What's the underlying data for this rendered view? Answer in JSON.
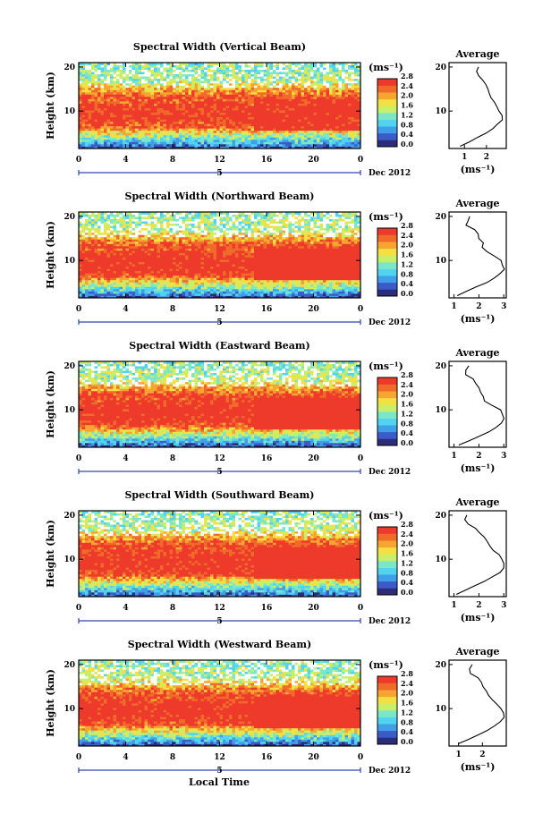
{
  "chart_data": {
    "type": "heatmap",
    "month_label": "Dec 2012",
    "xlabel": "Local Time",
    "day_label": "5",
    "ylabel": "Height (km)",
    "x_ticks": [
      "0",
      "4",
      "8",
      "12",
      "16",
      "20",
      "0"
    ],
    "y_ticks": [
      "20",
      "10"
    ],
    "xlim": [
      0,
      24
    ],
    "ylim": [
      1.5,
      21
    ],
    "colorbar": {
      "unit": "(ms⁻¹)",
      "ticks": [
        {
          "value": 0.0,
          "label": "0.0"
        },
        {
          "value": 0.4,
          "label": "0.4"
        },
        {
          "value": 0.8,
          "label": "0.8"
        },
        {
          "value": 1.2,
          "label": "1.2"
        },
        {
          "value": 1.6,
          "label": "1.6"
        },
        {
          "value": 2.0,
          "label": "2.0"
        },
        {
          "value": 2.4,
          "label": "2.4"
        },
        {
          "value": 2.8,
          "label": "2.8"
        }
      ],
      "range": [
        0,
        2.8
      ],
      "colors": [
        "#2b2d7a",
        "#3b5cc8",
        "#3fa0e8",
        "#52d3f0",
        "#7ae8c8",
        "#c8ee6a",
        "#f4e042",
        "#f7a531",
        "#f06a2a",
        "#ee3a2a"
      ]
    },
    "profile_title": "Average",
    "profile_xlabel": "(ms⁻¹)",
    "panels": [
      {
        "title": "Spectral Width (Vertical Beam)",
        "intensity": 0.85,
        "profile": {
          "x_ticks": [
            {
              "value": 1,
              "label": "1"
            },
            {
              "value": 2,
              "label": "2"
            }
          ],
          "xlim": [
            0.3,
            2.9
          ],
          "height": [
            2,
            3,
            4,
            5,
            6,
            7,
            8,
            9,
            10,
            11,
            12,
            13,
            14,
            15,
            16,
            17,
            18,
            19,
            20
          ],
          "width": [
            0.8,
            1.2,
            1.6,
            2.0,
            2.3,
            2.5,
            2.7,
            2.7,
            2.6,
            2.45,
            2.35,
            2.2,
            2.15,
            2.05,
            2.0,
            1.85,
            1.65,
            1.55,
            1.65
          ]
        }
      },
      {
        "title": "Spectral Width (Northward Beam)",
        "intensity": 1.0,
        "profile": {
          "x_ticks": [
            {
              "value": 1,
              "label": "1"
            },
            {
              "value": 2,
              "label": "2"
            },
            {
              "value": 3,
              "label": "3"
            }
          ],
          "xlim": [
            0.8,
            3.1
          ],
          "height": [
            2,
            3,
            4,
            5,
            6,
            7,
            8,
            9,
            10,
            11,
            12,
            13,
            14,
            15,
            16,
            17,
            18,
            19,
            20
          ],
          "width": [
            1.15,
            1.5,
            1.9,
            2.3,
            2.6,
            2.85,
            3.0,
            2.95,
            2.9,
            2.6,
            2.3,
            2.1,
            2.2,
            2.0,
            1.95,
            1.85,
            1.5,
            1.55,
            1.65
          ]
        }
      },
      {
        "title": "Spectral Width (Eastward Beam)",
        "intensity": 1.0,
        "profile": {
          "x_ticks": [
            {
              "value": 1,
              "label": "1"
            },
            {
              "value": 2,
              "label": "2"
            },
            {
              "value": 3,
              "label": "3"
            }
          ],
          "xlim": [
            0.8,
            3.1
          ],
          "height": [
            2,
            3,
            4,
            5,
            6,
            7,
            8,
            9,
            10,
            11,
            12,
            13,
            14,
            15,
            16,
            17,
            18,
            19,
            20
          ],
          "width": [
            1.2,
            1.6,
            2.0,
            2.4,
            2.7,
            2.9,
            3.0,
            2.95,
            2.85,
            2.5,
            2.25,
            2.15,
            2.05,
            2.0,
            1.9,
            1.75,
            1.45,
            1.5,
            1.6
          ]
        }
      },
      {
        "title": "Spectral Width (Southward Beam)",
        "intensity": 1.0,
        "profile": {
          "x_ticks": [
            {
              "value": 1,
              "label": "1"
            },
            {
              "value": 2,
              "label": "2"
            },
            {
              "value": 3,
              "label": "3"
            }
          ],
          "xlim": [
            0.8,
            3.1
          ],
          "height": [
            2,
            3,
            4,
            5,
            6,
            7,
            8,
            9,
            10,
            11,
            12,
            13,
            14,
            15,
            16,
            17,
            18,
            19,
            20
          ],
          "width": [
            1.1,
            1.45,
            1.85,
            2.25,
            2.55,
            2.85,
            3.0,
            3.0,
            2.95,
            2.8,
            2.6,
            2.45,
            2.35,
            2.2,
            2.05,
            1.85,
            1.55,
            1.45,
            1.5
          ]
        }
      },
      {
        "title": "Spectral Width (Westward Beam)",
        "intensity": 1.0,
        "profile": {
          "x_ticks": [
            {
              "value": 1,
              "label": "1"
            },
            {
              "value": 2,
              "label": "2"
            }
          ],
          "xlim": [
            0.6,
            3.0
          ],
          "height": [
            2,
            3,
            4,
            5,
            6,
            7,
            8,
            9,
            10,
            11,
            12,
            13,
            14,
            15,
            16,
            17,
            18,
            19,
            20
          ],
          "width": [
            1.0,
            1.4,
            1.8,
            2.2,
            2.5,
            2.75,
            2.9,
            2.9,
            2.8,
            2.6,
            2.4,
            2.25,
            2.15,
            2.05,
            1.95,
            1.8,
            1.5,
            1.45,
            1.55
          ]
        }
      }
    ]
  }
}
